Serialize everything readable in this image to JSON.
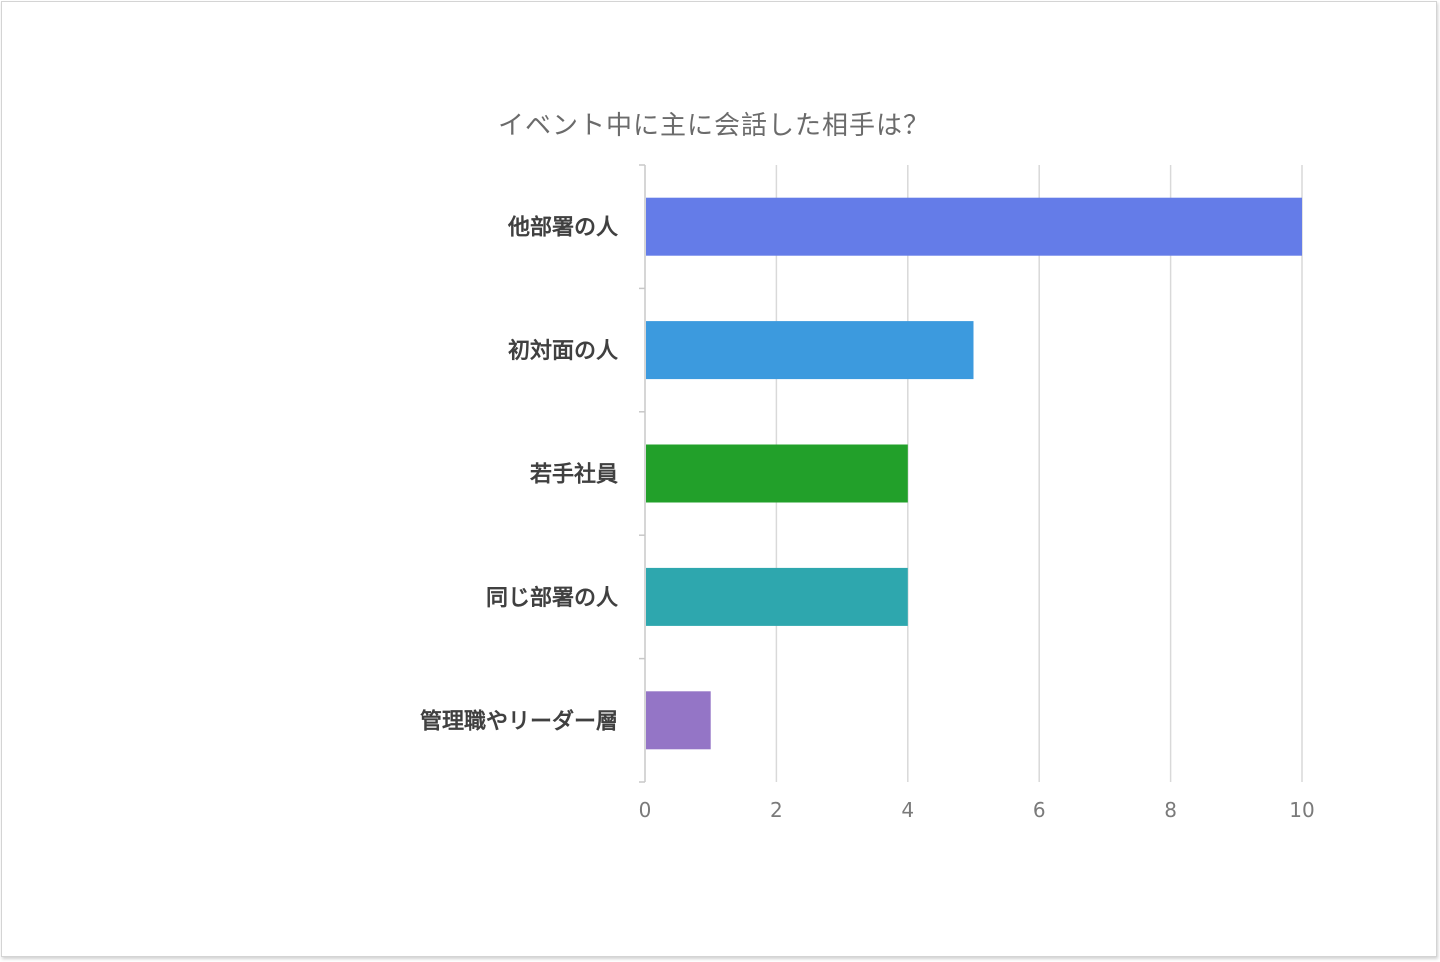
{
  "chart_data": {
    "type": "bar",
    "orientation": "horizontal",
    "title": "イベント中に主に会話した相手は？",
    "categories": [
      "他部署の人",
      "初対面の人",
      "若手社員",
      "同じ部署の人",
      "管理職やリーダー層"
    ],
    "values": [
      10,
      5,
      4,
      4,
      1
    ],
    "colors": [
      "#647ce8",
      "#3c9ade",
      "#22a02a",
      "#2ea7ae",
      "#9475c6"
    ],
    "xlim": [
      0,
      10
    ],
    "xticks": [
      "0",
      "2",
      "4",
      "6",
      "8",
      "10"
    ],
    "grid": "vertical",
    "legend": "none",
    "xlabel": "",
    "ylabel": ""
  }
}
